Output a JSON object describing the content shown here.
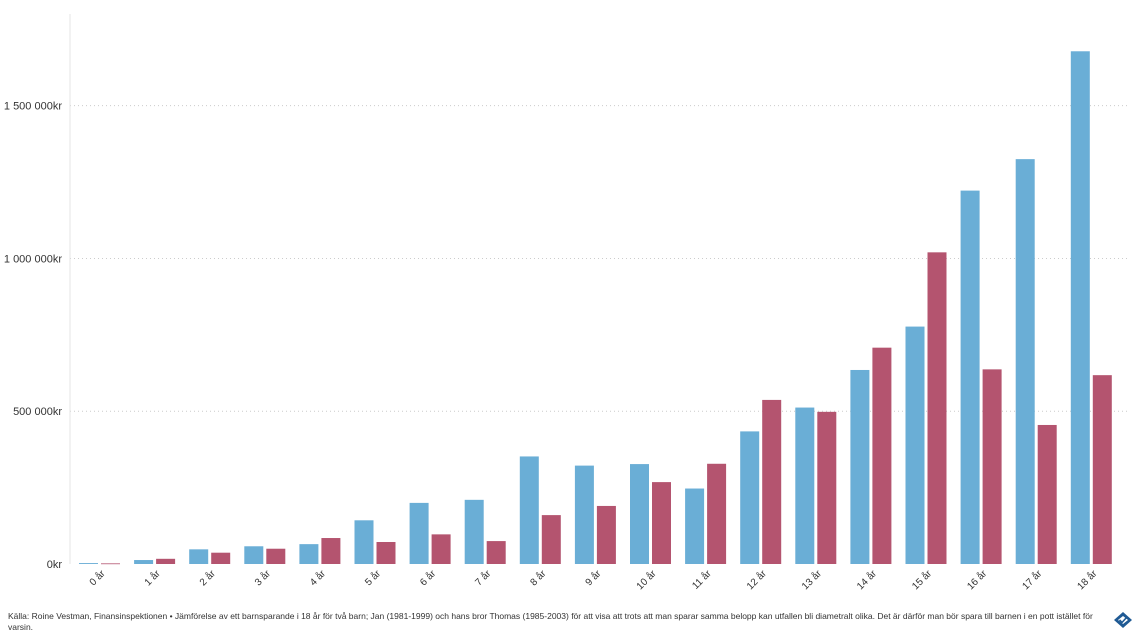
{
  "chart_data": {
    "type": "bar",
    "categories": [
      "0 år",
      "1 år",
      "2 år",
      "3 år",
      "4 år",
      "5 år",
      "6 år",
      "7 år",
      "8 år",
      "9 år",
      "10 år",
      "11 år",
      "12 år",
      "13 år",
      "14 år",
      "15 år",
      "16 år",
      "17 år",
      "18 år"
    ],
    "series": [
      {
        "values": [
          3000,
          13000,
          48000,
          58000,
          65000,
          143000,
          200000,
          210000,
          352000,
          322000,
          327000,
          247000,
          434000,
          512000,
          635000,
          777000,
          1222000,
          1325000,
          1678000
        ]
      },
      {
        "values": [
          2000,
          17000,
          37000,
          50000,
          85000,
          72000,
          97000,
          75000,
          160000,
          190000,
          268000,
          328000,
          537000,
          498000,
          708000,
          1020000,
          637000,
          455000,
          618000
        ]
      }
    ],
    "ylim": [
      0,
      1800000
    ],
    "yticks": [
      0,
      500000,
      1000000,
      1500000
    ],
    "ytick_labels": [
      "0kr",
      "500 000kr",
      "1 000 000kr",
      "1 500 000kr"
    ],
    "grid": true,
    "colors": [
      "#6aaed6",
      "#b4546f"
    ]
  },
  "caption": "Källa: Roine Vestman, Finansinspektionen • Jämförelse av ett barnsparande i 18 år för två barn; Jan (1981-1999) och hans bror Thomas (1985-2003) för att visa att trots att man sparar samma belopp kan utfallen bli diametralt olika. Det är därför man bör spara till barnen i en pott istället för varsin.",
  "logo": {
    "icon": "diamond-check-icon",
    "color": "#1f5a94"
  }
}
